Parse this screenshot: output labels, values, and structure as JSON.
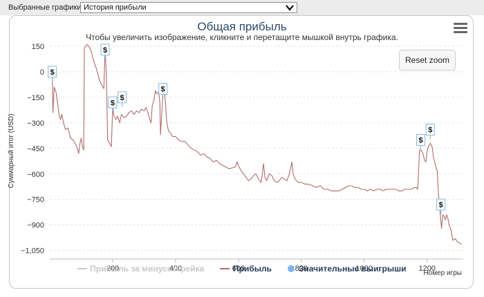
{
  "toolbar": {
    "label": "Выбранные графики:",
    "select_value": "История прибыли"
  },
  "chart_header": {
    "title": "Общая прибыль",
    "subtitle": "Чтобы увеличить изображение, кликните и перетащите мышкой внутрь графика.",
    "reset_zoom": "Reset zoom",
    "menu_icon": "hamburger-menu-icon"
  },
  "colors": {
    "line": "#b06b6b",
    "marker_bg": "#ffffff",
    "marker_border": "#7fb6e0",
    "legend_inactive": "#c8c8c8",
    "legend_active": "#2a3b5a",
    "legend_dot": "#7cb5ec",
    "title": "#2f4a6a"
  },
  "chart_data": {
    "type": "line",
    "title": "Общая прибыль",
    "ylabel": "Суммарный итог (USD)",
    "xlabel": "Номер игры",
    "xlim": [
      0,
      1315
    ],
    "ylim": [
      -1100,
      170
    ],
    "x_ticks": [
      200,
      400,
      600,
      800,
      1000,
      1200
    ],
    "y_ticks": [
      150,
      0,
      -150,
      -300,
      -450,
      -600,
      -750,
      -900,
      -1050
    ],
    "x_tick_labels": [
      "200",
      "400",
      "600",
      "800",
      "1000",
      "1200"
    ],
    "y_tick_labels": [
      "150",
      "0",
      "−150",
      "−300",
      "−450",
      "−600",
      "−750",
      "−900",
      "−1,050"
    ],
    "grid": "horizontal dashed",
    "legend_placement": "bottom",
    "legend": [
      {
        "name": "Прибыль за минусом рейка",
        "active": false
      },
      {
        "name": "Прибыль",
        "active": true
      },
      {
        "name": "Значительные выигрыши",
        "active": true
      }
    ],
    "series": [
      {
        "name": "Прибыль",
        "points": [
          [
            0,
            0
          ],
          [
            6,
            -5
          ],
          [
            8,
            -8
          ],
          [
            10,
            -240
          ],
          [
            14,
            -90
          ],
          [
            20,
            -120
          ],
          [
            26,
            -200
          ],
          [
            30,
            -260
          ],
          [
            34,
            -280
          ],
          [
            38,
            -250
          ],
          [
            44,
            -300
          ],
          [
            50,
            -340
          ],
          [
            58,
            -330
          ],
          [
            66,
            -390
          ],
          [
            74,
            -400
          ],
          [
            80,
            -420
          ],
          [
            86,
            -440
          ],
          [
            92,
            -480
          ],
          [
            96,
            -420
          ],
          [
            100,
            -390
          ],
          [
            104,
            -440
          ],
          [
            108,
            -460
          ],
          [
            110,
            140
          ],
          [
            118,
            160
          ],
          [
            124,
            150
          ],
          [
            132,
            120
          ],
          [
            140,
            60
          ],
          [
            148,
            20
          ],
          [
            158,
            -50
          ],
          [
            166,
            -80
          ],
          [
            172,
            -100
          ],
          [
            176,
            140
          ],
          [
            180,
            -30
          ],
          [
            184,
            -400
          ],
          [
            190,
            -420
          ],
          [
            196,
            -440
          ],
          [
            200,
            -200
          ],
          [
            204,
            -260
          ],
          [
            210,
            -280
          ],
          [
            216,
            -260
          ],
          [
            222,
            -300
          ],
          [
            228,
            -250
          ],
          [
            236,
            -270
          ],
          [
            244,
            -260
          ],
          [
            252,
            -240
          ],
          [
            260,
            -230
          ],
          [
            268,
            -250
          ],
          [
            276,
            -230
          ],
          [
            284,
            -240
          ],
          [
            292,
            -220
          ],
          [
            300,
            -230
          ],
          [
            306,
            -210
          ],
          [
            312,
            -240
          ],
          [
            318,
            -280
          ],
          [
            322,
            -300
          ],
          [
            326,
            -200
          ],
          [
            332,
            -160
          ],
          [
            336,
            -110
          ],
          [
            340,
            -130
          ],
          [
            346,
            -120
          ],
          [
            350,
            -180
          ],
          [
            352,
            -370
          ],
          [
            356,
            -250
          ],
          [
            360,
            -110
          ],
          [
            364,
            -100
          ],
          [
            368,
            -180
          ],
          [
            372,
            -300
          ],
          [
            378,
            -350
          ],
          [
            384,
            -360
          ],
          [
            390,
            -380
          ],
          [
            400,
            -380
          ],
          [
            410,
            -400
          ],
          [
            420,
            -410
          ],
          [
            430,
            -410
          ],
          [
            440,
            -430
          ],
          [
            450,
            -450
          ],
          [
            460,
            -460
          ],
          [
            470,
            -470
          ],
          [
            480,
            -490
          ],
          [
            490,
            -480
          ],
          [
            500,
            -500
          ],
          [
            510,
            -510
          ],
          [
            520,
            -530
          ],
          [
            530,
            -520
          ],
          [
            540,
            -540
          ],
          [
            550,
            -550
          ],
          [
            560,
            -560
          ],
          [
            570,
            -570
          ],
          [
            580,
            -565
          ],
          [
            590,
            -560
          ],
          [
            596,
            -530
          ],
          [
            602,
            -560
          ],
          [
            608,
            -580
          ],
          [
            616,
            -600
          ],
          [
            624,
            -620
          ],
          [
            632,
            -640
          ],
          [
            640,
            -630
          ],
          [
            648,
            -610
          ],
          [
            656,
            -600
          ],
          [
            664,
            -630
          ],
          [
            672,
            -650
          ],
          [
            676,
            -600
          ],
          [
            680,
            -540
          ],
          [
            684,
            -620
          ],
          [
            690,
            -640
          ],
          [
            698,
            -600
          ],
          [
            706,
            -610
          ],
          [
            714,
            -640
          ],
          [
            722,
            -650
          ],
          [
            730,
            -640
          ],
          [
            738,
            -620
          ],
          [
            746,
            -630
          ],
          [
            754,
            -640
          ],
          [
            762,
            -600
          ],
          [
            770,
            -530
          ],
          [
            774,
            -600
          ],
          [
            780,
            -630
          ],
          [
            790,
            -650
          ],
          [
            800,
            -650
          ],
          [
            812,
            -660
          ],
          [
            824,
            -660
          ],
          [
            836,
            -670
          ],
          [
            848,
            -680
          ],
          [
            860,
            -670
          ],
          [
            872,
            -690
          ],
          [
            884,
            -690
          ],
          [
            896,
            -700
          ],
          [
            908,
            -700
          ],
          [
            920,
            -700
          ],
          [
            930,
            -690
          ],
          [
            940,
            -680
          ],
          [
            950,
            -670
          ],
          [
            960,
            -670
          ],
          [
            970,
            -680
          ],
          [
            980,
            -680
          ],
          [
            990,
            -690
          ],
          [
            1000,
            -690
          ],
          [
            1010,
            -700
          ],
          [
            1020,
            -690
          ],
          [
            1030,
            -700
          ],
          [
            1040,
            -690
          ],
          [
            1050,
            -690
          ],
          [
            1060,
            -700
          ],
          [
            1070,
            -690
          ],
          [
            1080,
            -690
          ],
          [
            1090,
            -690
          ],
          [
            1100,
            -690
          ],
          [
            1110,
            -700
          ],
          [
            1120,
            -700
          ],
          [
            1130,
            -690
          ],
          [
            1140,
            -690
          ],
          [
            1150,
            -690
          ],
          [
            1160,
            -680
          ],
          [
            1166,
            -680
          ],
          [
            1170,
            -690
          ],
          [
            1176,
            -460
          ],
          [
            1180,
            -460
          ],
          [
            1186,
            -475
          ],
          [
            1192,
            -520
          ],
          [
            1196,
            -530
          ],
          [
            1200,
            -470
          ],
          [
            1204,
            -440
          ],
          [
            1210,
            -420
          ],
          [
            1216,
            -440
          ],
          [
            1220,
            -500
          ],
          [
            1224,
            -530
          ],
          [
            1228,
            -560
          ],
          [
            1232,
            -580
          ],
          [
            1236,
            -720
          ],
          [
            1240,
            -800
          ],
          [
            1246,
            -920
          ],
          [
            1250,
            -840
          ],
          [
            1254,
            -850
          ],
          [
            1258,
            -870
          ],
          [
            1262,
            -840
          ],
          [
            1266,
            -860
          ],
          [
            1270,
            -900
          ],
          [
            1276,
            -930
          ],
          [
            1282,
            -990
          ],
          [
            1290,
            -980
          ],
          [
            1296,
            -1000
          ],
          [
            1304,
            -1005
          ],
          [
            1310,
            -1015
          ]
        ]
      },
      {
        "name": "Значительные выигрыши",
        "marker_label": "$",
        "points": [
          [
            8,
            0
          ],
          [
            176,
            130
          ],
          [
            200,
            -180
          ],
          [
            230,
            -150
          ],
          [
            360,
            -100
          ],
          [
            1180,
            -400
          ],
          [
            1210,
            -340
          ],
          [
            1244,
            -780
          ]
        ]
      }
    ]
  }
}
